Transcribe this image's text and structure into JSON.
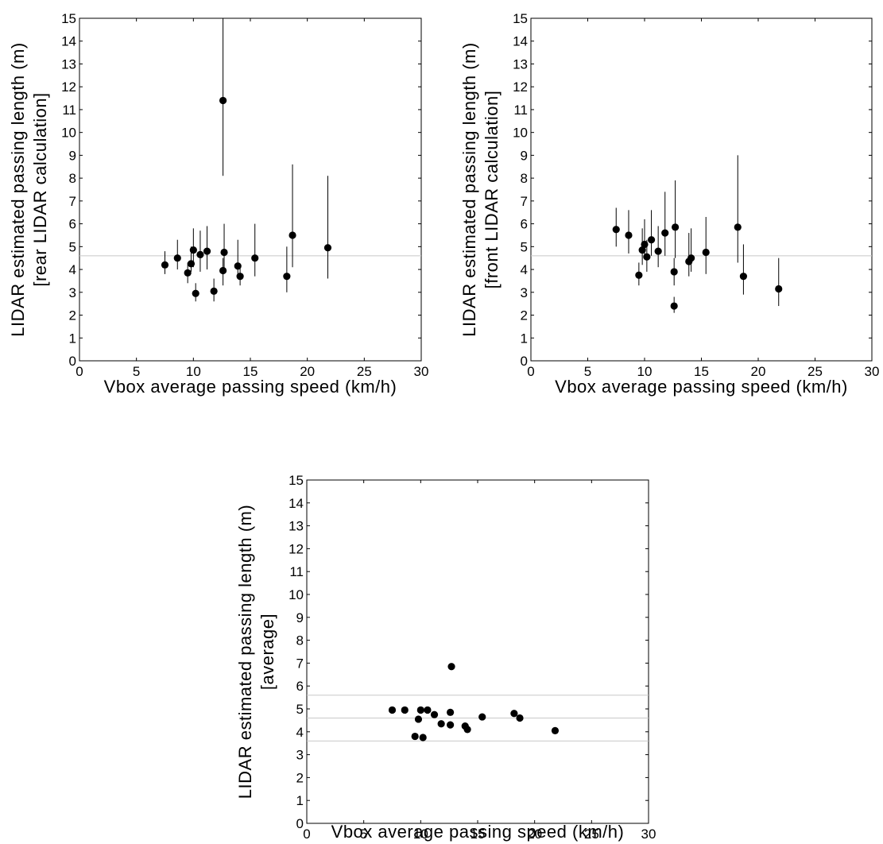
{
  "chart_data": [
    {
      "type": "scatter",
      "xlabel": "Vbox average passing speed (km/h)",
      "ylabel": [
        "LIDAR estimated passing length (m)",
        "[rear LIDAR calculation]"
      ],
      "xlim": [
        0,
        30
      ],
      "ylim": [
        0,
        15
      ],
      "xticks": [
        "0",
        "5",
        "10",
        "15",
        "20",
        "25",
        "30"
      ],
      "yticks": [
        "0",
        "1",
        "2",
        "3",
        "4",
        "5",
        "6",
        "7",
        "8",
        "9",
        "10",
        "11",
        "12",
        "13",
        "14",
        "15"
      ],
      "reference_lines": [
        4.6
      ],
      "grid": false,
      "points": [
        {
          "x": 7.5,
          "y": 4.2,
          "lo": 3.8,
          "hi": 4.8
        },
        {
          "x": 8.6,
          "y": 4.5,
          "lo": 4.0,
          "hi": 5.3
        },
        {
          "x": 9.5,
          "y": 3.85,
          "lo": 3.4,
          "hi": 4.3
        },
        {
          "x": 9.8,
          "y": 4.25,
          "lo": 3.9,
          "hi": 5.0
        },
        {
          "x": 10.0,
          "y": 4.85,
          "lo": 4.1,
          "hi": 5.8
        },
        {
          "x": 10.2,
          "y": 2.95,
          "lo": 2.6,
          "hi": 3.4
        },
        {
          "x": 10.6,
          "y": 4.65,
          "lo": 3.9,
          "hi": 5.7
        },
        {
          "x": 11.2,
          "y": 4.8,
          "lo": 4.0,
          "hi": 5.9
        },
        {
          "x": 11.8,
          "y": 3.05,
          "lo": 2.6,
          "hi": 3.6
        },
        {
          "x": 12.6,
          "y": 11.4,
          "lo": 8.1,
          "hi": 15.0
        },
        {
          "x": 12.7,
          "y": 4.75,
          "lo": 4.0,
          "hi": 6.0
        },
        {
          "x": 12.6,
          "y": 3.95,
          "lo": 3.3,
          "hi": 4.5
        },
        {
          "x": 13.9,
          "y": 4.15,
          "lo": 3.6,
          "hi": 5.3
        },
        {
          "x": 14.1,
          "y": 3.7,
          "lo": 3.3,
          "hi": 4.2
        },
        {
          "x": 15.4,
          "y": 4.5,
          "lo": 3.7,
          "hi": 6.0
        },
        {
          "x": 18.2,
          "y": 3.7,
          "lo": 3.0,
          "hi": 5.0
        },
        {
          "x": 18.7,
          "y": 5.5,
          "lo": 4.1,
          "hi": 8.6
        },
        {
          "x": 21.8,
          "y": 4.95,
          "lo": 3.6,
          "hi": 8.1
        }
      ]
    },
    {
      "type": "scatter",
      "xlabel": "Vbox average passing speed (km/h)",
      "ylabel": [
        "LIDAR estimated passing length (m)",
        "[front LIDAR calculation]"
      ],
      "xlim": [
        0,
        30
      ],
      "ylim": [
        0,
        15
      ],
      "xticks": [
        "0",
        "5",
        "10",
        "15",
        "20",
        "25",
        "30"
      ],
      "yticks": [
        "0",
        "1",
        "2",
        "3",
        "4",
        "5",
        "6",
        "7",
        "8",
        "9",
        "10",
        "11",
        "12",
        "13",
        "14",
        "15"
      ],
      "reference_lines": [
        4.6
      ],
      "grid": false,
      "points": [
        {
          "x": 7.5,
          "y": 5.75,
          "lo": 5.0,
          "hi": 6.7
        },
        {
          "x": 8.6,
          "y": 5.5,
          "lo": 4.7,
          "hi": 6.6
        },
        {
          "x": 9.5,
          "y": 3.75,
          "lo": 3.3,
          "hi": 4.3
        },
        {
          "x": 9.8,
          "y": 4.85,
          "lo": 4.2,
          "hi": 5.8
        },
        {
          "x": 10.0,
          "y": 5.1,
          "lo": 4.5,
          "hi": 6.2
        },
        {
          "x": 10.2,
          "y": 4.55,
          "lo": 3.9,
          "hi": 5.3
        },
        {
          "x": 10.6,
          "y": 5.3,
          "lo": 4.6,
          "hi": 6.6
        },
        {
          "x": 11.2,
          "y": 4.8,
          "lo": 4.1,
          "hi": 5.9
        },
        {
          "x": 11.8,
          "y": 5.6,
          "lo": 4.6,
          "hi": 7.4
        },
        {
          "x": 12.7,
          "y": 5.85,
          "lo": 4.5,
          "hi": 7.9
        },
        {
          "x": 12.6,
          "y": 3.9,
          "lo": 3.3,
          "hi": 4.5
        },
        {
          "x": 12.6,
          "y": 2.4,
          "lo": 2.1,
          "hi": 2.8
        },
        {
          "x": 13.9,
          "y": 4.35,
          "lo": 3.7,
          "hi": 5.6
        },
        {
          "x": 14.1,
          "y": 4.5,
          "lo": 3.9,
          "hi": 5.8
        },
        {
          "x": 15.4,
          "y": 4.75,
          "lo": 3.8,
          "hi": 6.3
        },
        {
          "x": 18.2,
          "y": 5.85,
          "lo": 4.3,
          "hi": 9.0
        },
        {
          "x": 18.7,
          "y": 3.7,
          "lo": 2.9,
          "hi": 5.1
        },
        {
          "x": 21.8,
          "y": 3.15,
          "lo": 2.4,
          "hi": 4.5
        }
      ]
    },
    {
      "type": "scatter",
      "xlabel": "Vbox average passing speed (km/h)",
      "ylabel": [
        "LIDAR estimated passing length (m)",
        "[average]"
      ],
      "xlim": [
        0,
        30
      ],
      "ylim": [
        0,
        15
      ],
      "xticks": [
        "0",
        "5",
        "10",
        "15",
        "20",
        "25",
        "30"
      ],
      "yticks": [
        "0",
        "1",
        "2",
        "3",
        "4",
        "5",
        "6",
        "7",
        "8",
        "9",
        "10",
        "11",
        "12",
        "13",
        "14",
        "15"
      ],
      "reference_lines": [
        3.6,
        4.6,
        5.6
      ],
      "grid": false,
      "points": [
        {
          "x": 7.5,
          "y": 4.95
        },
        {
          "x": 8.6,
          "y": 4.95
        },
        {
          "x": 9.5,
          "y": 3.8
        },
        {
          "x": 9.8,
          "y": 4.55
        },
        {
          "x": 10.0,
          "y": 4.95
        },
        {
          "x": 10.2,
          "y": 3.75
        },
        {
          "x": 10.6,
          "y": 4.95
        },
        {
          "x": 11.2,
          "y": 4.75
        },
        {
          "x": 11.8,
          "y": 4.35
        },
        {
          "x": 12.7,
          "y": 6.85
        },
        {
          "x": 12.6,
          "y": 4.85
        },
        {
          "x": 12.6,
          "y": 4.3
        },
        {
          "x": 13.9,
          "y": 4.25
        },
        {
          "x": 14.1,
          "y": 4.1
        },
        {
          "x": 15.4,
          "y": 4.65
        },
        {
          "x": 18.2,
          "y": 4.8
        },
        {
          "x": 18.7,
          "y": 4.6
        },
        {
          "x": 21.8,
          "y": 4.05
        }
      ]
    }
  ]
}
